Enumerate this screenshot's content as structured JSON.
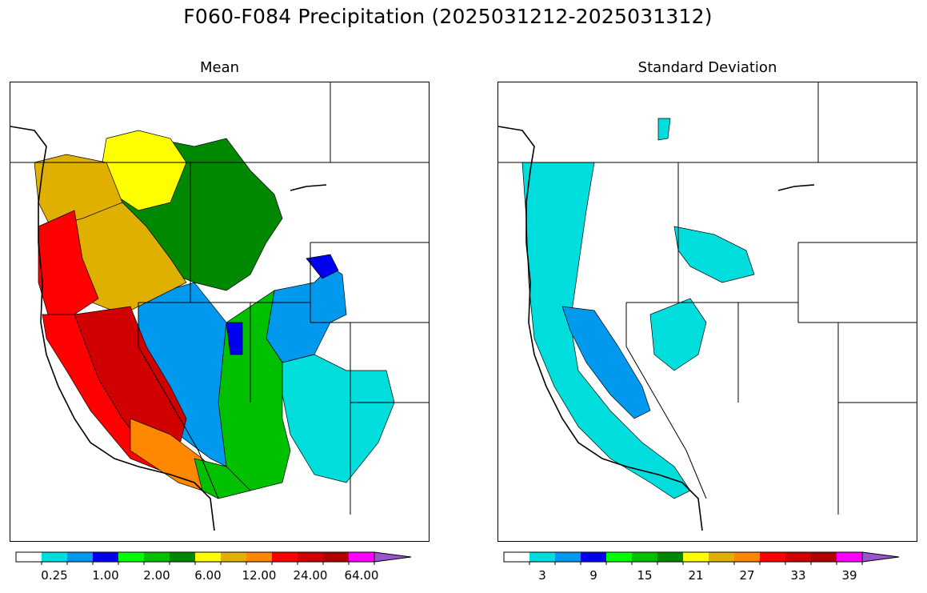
{
  "title": "F060-F084 Precipitation (2025031212-2025031312)",
  "panels": [
    {
      "id": "mean",
      "title": "Mean",
      "colorbar": {
        "colors": [
          "#ffffff",
          "#00dddd",
          "#0099ee",
          "#0000ee",
          "#00ff00",
          "#00c000",
          "#008800",
          "#ffff00",
          "#e0b000",
          "#ff8800",
          "#ff0000",
          "#d00000",
          "#b00000",
          "#ff00ff",
          "#9955cc"
        ],
        "tick_labels": [
          "0.25",
          "1.00",
          "2.00",
          "6.00",
          "12.00",
          "24.00",
          "64.00"
        ],
        "extend": "max"
      }
    },
    {
      "id": "std",
      "title": "Standard Deviation",
      "colorbar": {
        "colors": [
          "#ffffff",
          "#00dddd",
          "#0099ee",
          "#0000ee",
          "#00ff00",
          "#00c000",
          "#008800",
          "#ffff00",
          "#e0b000",
          "#ff8800",
          "#ff0000",
          "#d00000",
          "#b00000",
          "#ff00ff",
          "#9955cc"
        ],
        "tick_labels": [
          "3",
          "9",
          "15",
          "21",
          "27",
          "33",
          "39"
        ],
        "extend": "max"
      }
    }
  ],
  "map_regions": {
    "mean": [
      {
        "name": "pacific-northwest-coast",
        "color": "#e0b000"
      },
      {
        "name": "northern-california-coast",
        "color": "#ff0000"
      },
      {
        "name": "sierra-nevada-west",
        "color": "#d00000"
      },
      {
        "name": "central-california-valley",
        "color": "#ff0000"
      },
      {
        "name": "southern-california",
        "color": "#ff8800"
      },
      {
        "name": "washington-interior",
        "color": "#ffff00"
      },
      {
        "name": "idaho-montana",
        "color": "#008800"
      },
      {
        "name": "oregon-interior",
        "color": "#e0b000"
      },
      {
        "name": "great-basin",
        "color": "#00c000"
      },
      {
        "name": "utah-wasatch",
        "color": "#0099ee"
      },
      {
        "name": "arizona-central",
        "color": "#00c000"
      },
      {
        "name": "southwest-desert",
        "color": "#0099ee"
      },
      {
        "name": "colorado-plateau",
        "color": "#00dddd"
      },
      {
        "name": "wyoming-peaks",
        "color": "#0000ee"
      }
    ],
    "std": [
      {
        "name": "pacific-coast",
        "color": "#00dddd"
      },
      {
        "name": "sierra-nevada",
        "color": "#0099ee"
      },
      {
        "name": "central-idaho",
        "color": "#00dddd"
      },
      {
        "name": "northern-nevada",
        "color": "#00dddd"
      }
    ]
  }
}
